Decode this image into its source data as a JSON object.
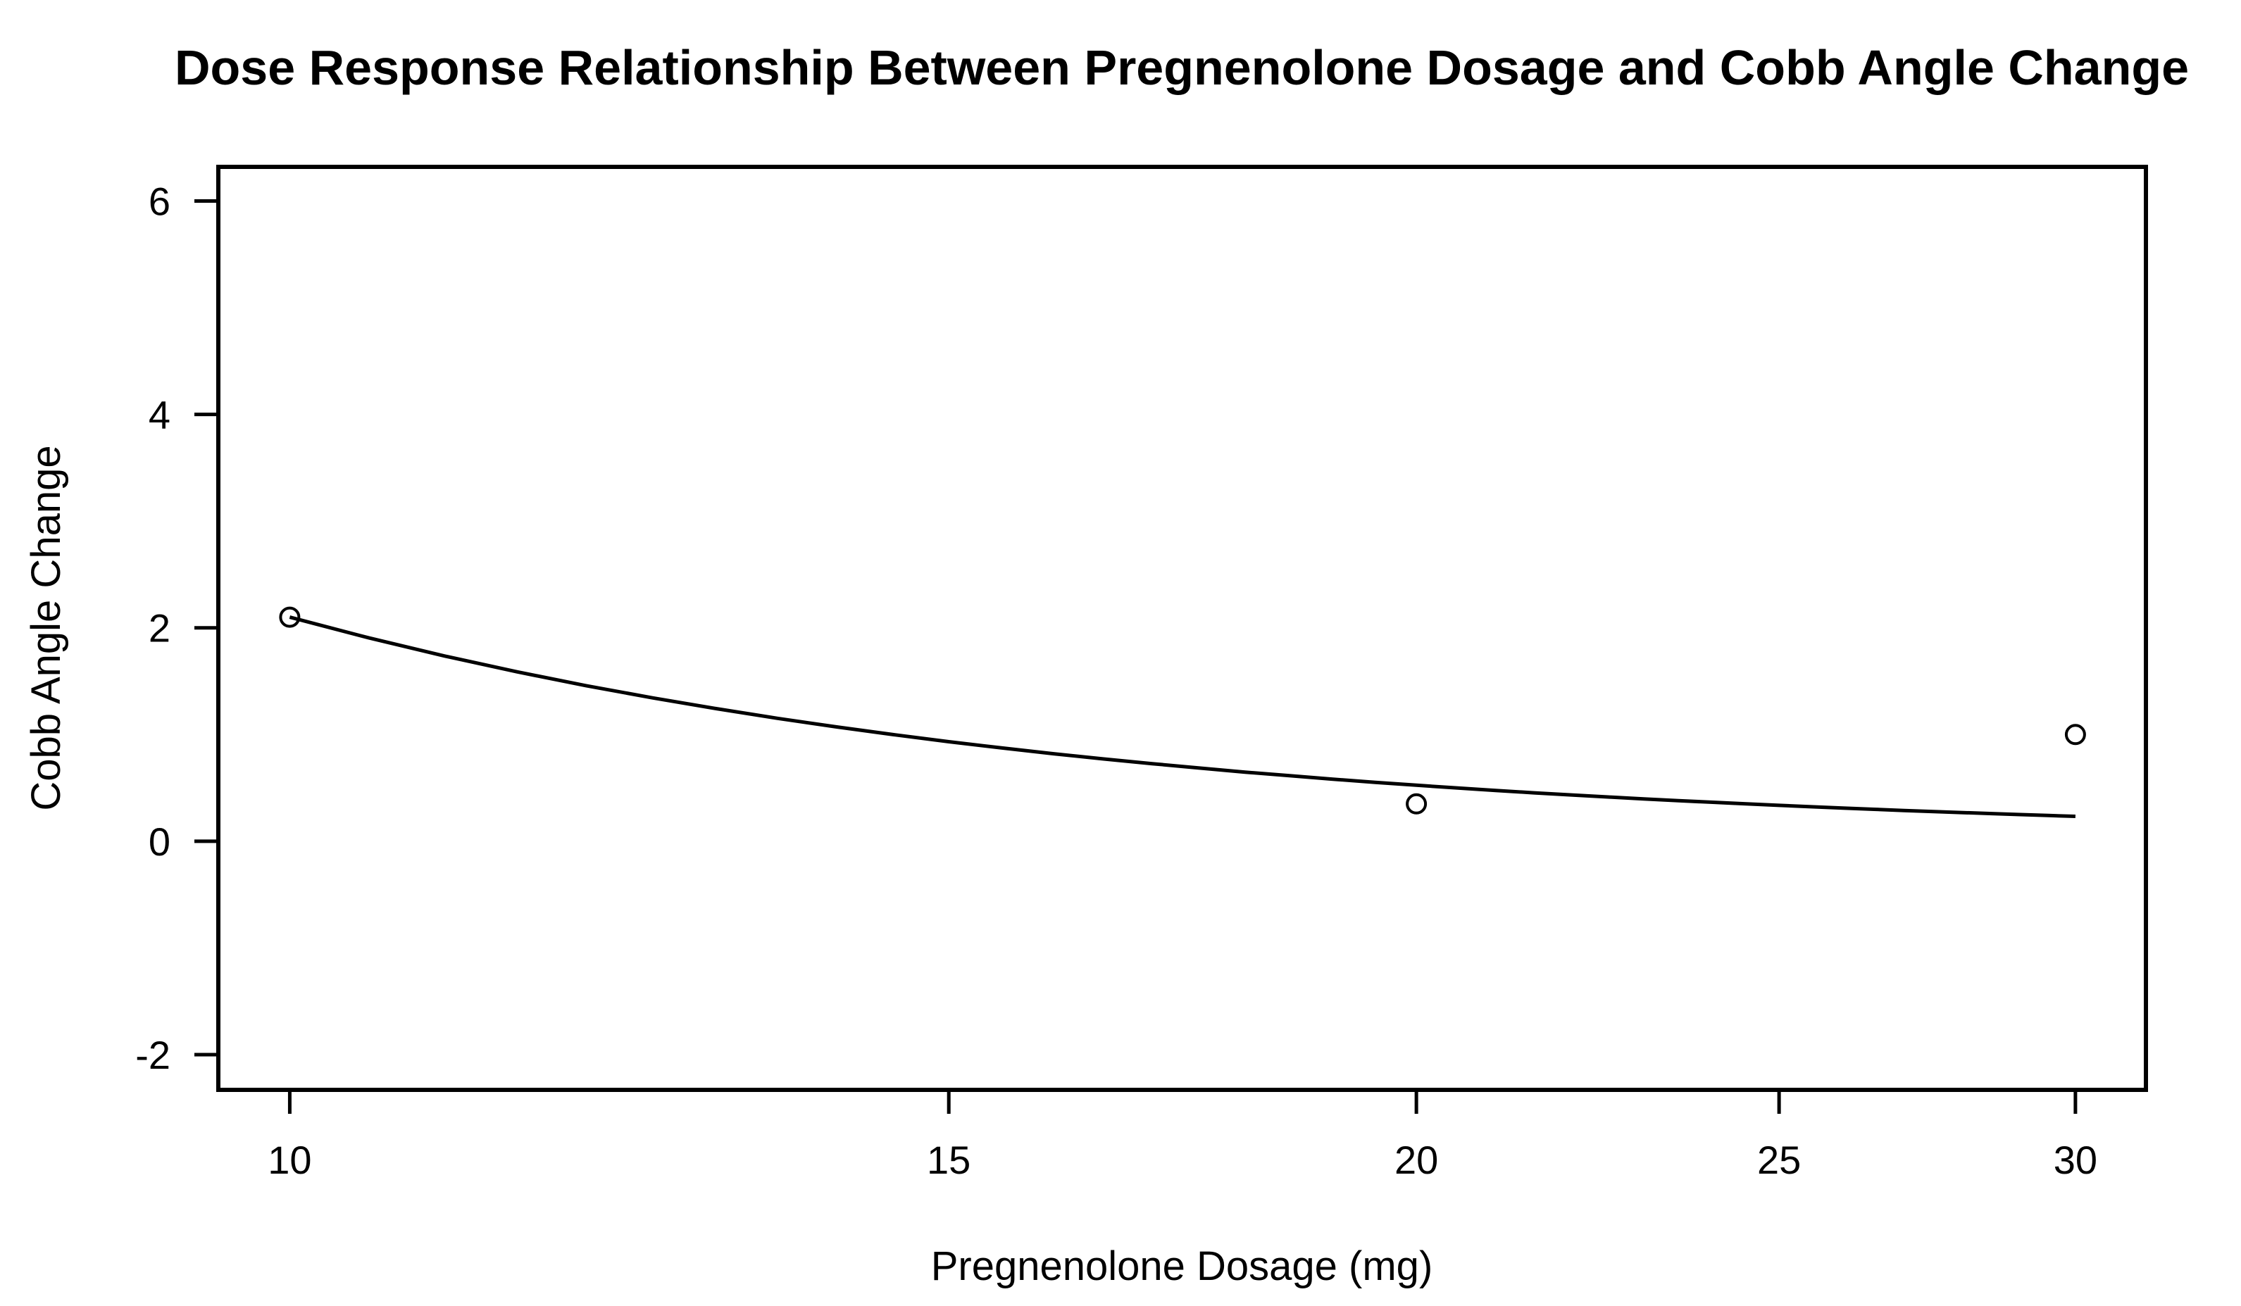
{
  "chart_data": {
    "type": "scatter",
    "title": "Dose Response Relationship Between Pregnenolone Dosage and Cobb Angle Change",
    "xlabel": "Pregnenolone Dosage (mg)",
    "ylabel": "Cobb Angle Change",
    "x_scale": "log10",
    "grid": false,
    "legend": false,
    "x_ticks": [
      10,
      15,
      20,
      25,
      30
    ],
    "y_ticks": [
      6,
      4,
      2,
      0,
      -2
    ],
    "xlim": [
      9.57,
      31.33
    ],
    "ylim": [
      -2.33,
      6.32
    ],
    "points": [
      {
        "x": 10,
        "y": 2.1
      },
      {
        "x": 20,
        "y": 0.35
      },
      {
        "x": 30,
        "y": 1.0
      }
    ],
    "fit_curve": {
      "x": [
        10,
        10.5,
        11,
        11.5,
        12,
        12.5,
        13,
        13.5,
        14,
        14.5,
        15,
        15.5,
        16,
        16.5,
        17,
        17.5,
        18,
        18.5,
        19,
        19.5,
        20,
        20.5,
        21,
        21.5,
        22,
        22.5,
        23,
        23.5,
        24,
        24.5,
        25,
        25.5,
        26,
        26.5,
        27,
        27.5,
        28,
        28.5,
        29,
        29.5,
        30
      ],
      "y": [
        2.1,
        1.905,
        1.736,
        1.588,
        1.458,
        1.344,
        1.243,
        1.152,
        1.071,
        0.999,
        0.933,
        0.874,
        0.82,
        0.771,
        0.727,
        0.686,
        0.648,
        0.614,
        0.582,
        0.552,
        0.525,
        0.5,
        0.476,
        0.454,
        0.434,
        0.415,
        0.397,
        0.38,
        0.365,
        0.35,
        0.336,
        0.323,
        0.311,
        0.299,
        0.288,
        0.278,
        0.268,
        0.259,
        0.25,
        0.241,
        0.233
      ]
    },
    "colors": {
      "foreground": "#000000",
      "background": "#ffffff"
    }
  }
}
